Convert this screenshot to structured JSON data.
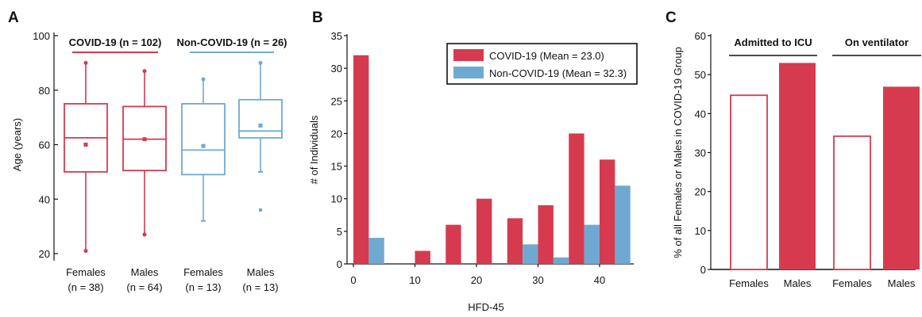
{
  "colors": {
    "covid": "#D63A4E",
    "noncovid": "#6FA9D2",
    "axis": "#111111",
    "white": "#ffffff"
  },
  "panels": [
    {
      "letter": "A"
    },
    {
      "letter": "B"
    },
    {
      "letter": "C"
    }
  ],
  "chart_data": [
    {
      "type": "box",
      "panel": "A",
      "ylabel": "Age (years)",
      "ylim": [
        18,
        100
      ],
      "yticks": [
        20,
        40,
        60,
        80,
        100
      ],
      "groups": [
        {
          "title": "COVID-19 (n = 102)",
          "color": "covid"
        },
        {
          "title": "Non-COVID-19 (n = 26)",
          "color": "noncovid"
        }
      ],
      "boxes": [
        {
          "label": "Females",
          "n": "(n = 38)",
          "group": 0,
          "whisker_low": 21,
          "q1": 50,
          "median": 62.5,
          "q3": 75,
          "whisker_high": 90,
          "mean": 60,
          "outliers": []
        },
        {
          "label": "Males",
          "n": "(n = 64)",
          "group": 0,
          "whisker_low": 27,
          "q1": 50.5,
          "median": 62,
          "q3": 74,
          "whisker_high": 87,
          "mean": 62,
          "outliers": []
        },
        {
          "label": "Females",
          "n": "(n = 13)",
          "group": 1,
          "whisker_low": 32,
          "q1": 49,
          "median": 58,
          "q3": 75,
          "whisker_high": 84,
          "mean": 59.5,
          "outliers": []
        },
        {
          "label": "Males",
          "n": "(n = 13)",
          "group": 1,
          "whisker_low": 50,
          "q1": 62.5,
          "median": 65,
          "q3": 76.5,
          "whisker_high": 90,
          "mean": 67,
          "outliers": [
            36
          ]
        }
      ]
    },
    {
      "type": "bar",
      "panel": "B",
      "xlabel": "HFD-45",
      "ylabel": "# of Individuals",
      "xlim": [
        -1,
        45
      ],
      "ylim": [
        0,
        35
      ],
      "xticks": [
        0,
        10,
        20,
        30,
        40
      ],
      "yticks": [
        0,
        5,
        10,
        15,
        20,
        25,
        30,
        35
      ],
      "series": [
        {
          "name": "COVID-19 (Mean = 23.0)",
          "color": "covid",
          "bars": [
            {
              "x": 1.25,
              "value": 32
            },
            {
              "x": 11.25,
              "value": 2
            },
            {
              "x": 16.25,
              "value": 6
            },
            {
              "x": 21.25,
              "value": 10
            },
            {
              "x": 26.25,
              "value": 7
            },
            {
              "x": 31.25,
              "value": 9
            },
            {
              "x": 36.25,
              "value": 20
            },
            {
              "x": 41.25,
              "value": 16
            }
          ]
        },
        {
          "name": "Non-COVID-19 (Mean = 32.3)",
          "color": "noncovid",
          "bars": [
            {
              "x": 3.75,
              "value": 4
            },
            {
              "x": 28.75,
              "value": 3
            },
            {
              "x": 33.75,
              "value": 1
            },
            {
              "x": 38.75,
              "value": 6
            },
            {
              "x": 43.75,
              "value": 12
            }
          ]
        }
      ],
      "legend": "top-right"
    },
    {
      "type": "bar",
      "panel": "C",
      "ylabel": "% of all Females or Males in COVID-19 Group",
      "ylim": [
        0,
        60
      ],
      "yticks": [
        0,
        10,
        20,
        30,
        40,
        50,
        60
      ],
      "groups": [
        {
          "title": "Admitted to ICU",
          "bars": [
            {
              "label": "Females",
              "value": 44.7,
              "style": "outline"
            },
            {
              "label": "Males",
              "value": 53,
              "style": "filled"
            }
          ]
        },
        {
          "title": "On ventilator",
          "bars": [
            {
              "label": "Females",
              "value": 34.2,
              "style": "outline"
            },
            {
              "label": "Males",
              "value": 46.9,
              "style": "filled"
            }
          ]
        }
      ]
    }
  ]
}
